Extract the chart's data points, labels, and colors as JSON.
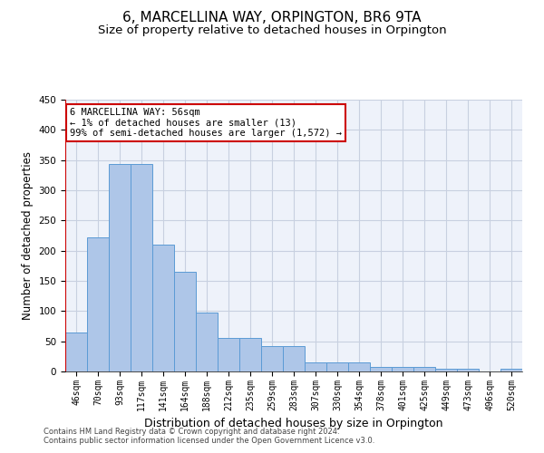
{
  "title": "6, MARCELLINA WAY, ORPINGTON, BR6 9TA",
  "subtitle": "Size of property relative to detached houses in Orpington",
  "xlabel": "Distribution of detached houses by size in Orpington",
  "ylabel": "Number of detached properties",
  "bar_values": [
    65,
    222,
    343,
    343,
    210,
    165,
    98,
    56,
    56,
    42,
    42,
    15,
    15,
    15,
    7,
    7,
    7,
    5,
    5,
    0,
    5
  ],
  "bar_labels": [
    "46sqm",
    "70sqm",
    "93sqm",
    "117sqm",
    "141sqm",
    "164sqm",
    "188sqm",
    "212sqm",
    "235sqm",
    "259sqm",
    "283sqm",
    "307sqm",
    "330sqm",
    "354sqm",
    "378sqm",
    "401sqm",
    "425sqm",
    "449sqm",
    "473sqm",
    "496sqm",
    "520sqm"
  ],
  "bar_color": "#aec6e8",
  "bar_edge_color": "#5b9bd5",
  "background_color": "#eef2fa",
  "grid_color": "#c8d0e0",
  "vline_color": "#cc0000",
  "annotation_text": "6 MARCELLINA WAY: 56sqm\n← 1% of detached houses are smaller (13)\n99% of semi-detached houses are larger (1,572) →",
  "annotation_box_color": "#cc0000",
  "ylim": [
    0,
    450
  ],
  "yticks": [
    0,
    50,
    100,
    150,
    200,
    250,
    300,
    350,
    400,
    450
  ],
  "footer_line1": "Contains HM Land Registry data © Crown copyright and database right 2024.",
  "footer_line2": "Contains public sector information licensed under the Open Government Licence v3.0.",
  "title_fontsize": 11,
  "subtitle_fontsize": 9.5,
  "xlabel_fontsize": 9,
  "ylabel_fontsize": 8.5,
  "tick_fontsize": 7,
  "annotation_fontsize": 7.5,
  "footer_fontsize": 6
}
